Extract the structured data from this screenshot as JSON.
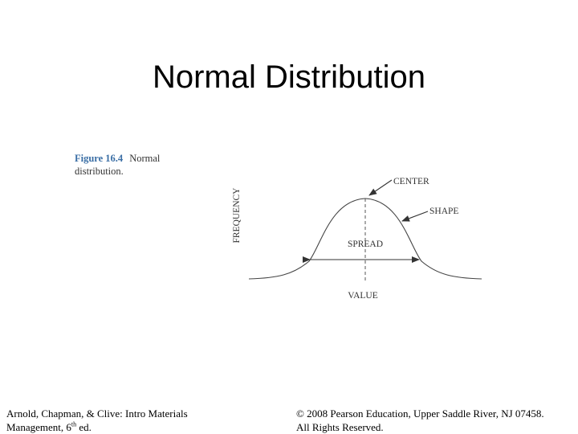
{
  "slide": {
    "title": "Normal Distribution"
  },
  "figure": {
    "number": "Figure 16.4",
    "caption": "Normal distribution.",
    "labels": {
      "center": "CENTER",
      "shape": "SHAPE",
      "spread": "SPREAD",
      "y_axis": "FREQUENCY",
      "x_axis": "VALUE"
    }
  },
  "footer": {
    "left_line1": "Arnold, Chapman, & Clive: Intro Materials",
    "left_line2_pre": "Management, 6",
    "left_line2_sup": "th",
    "left_line2_post": " ed.",
    "right_line1": "© 2008 Pearson Education, Upper Saddle River, NJ 07458.",
    "right_line2": "All Rights Reserved."
  }
}
